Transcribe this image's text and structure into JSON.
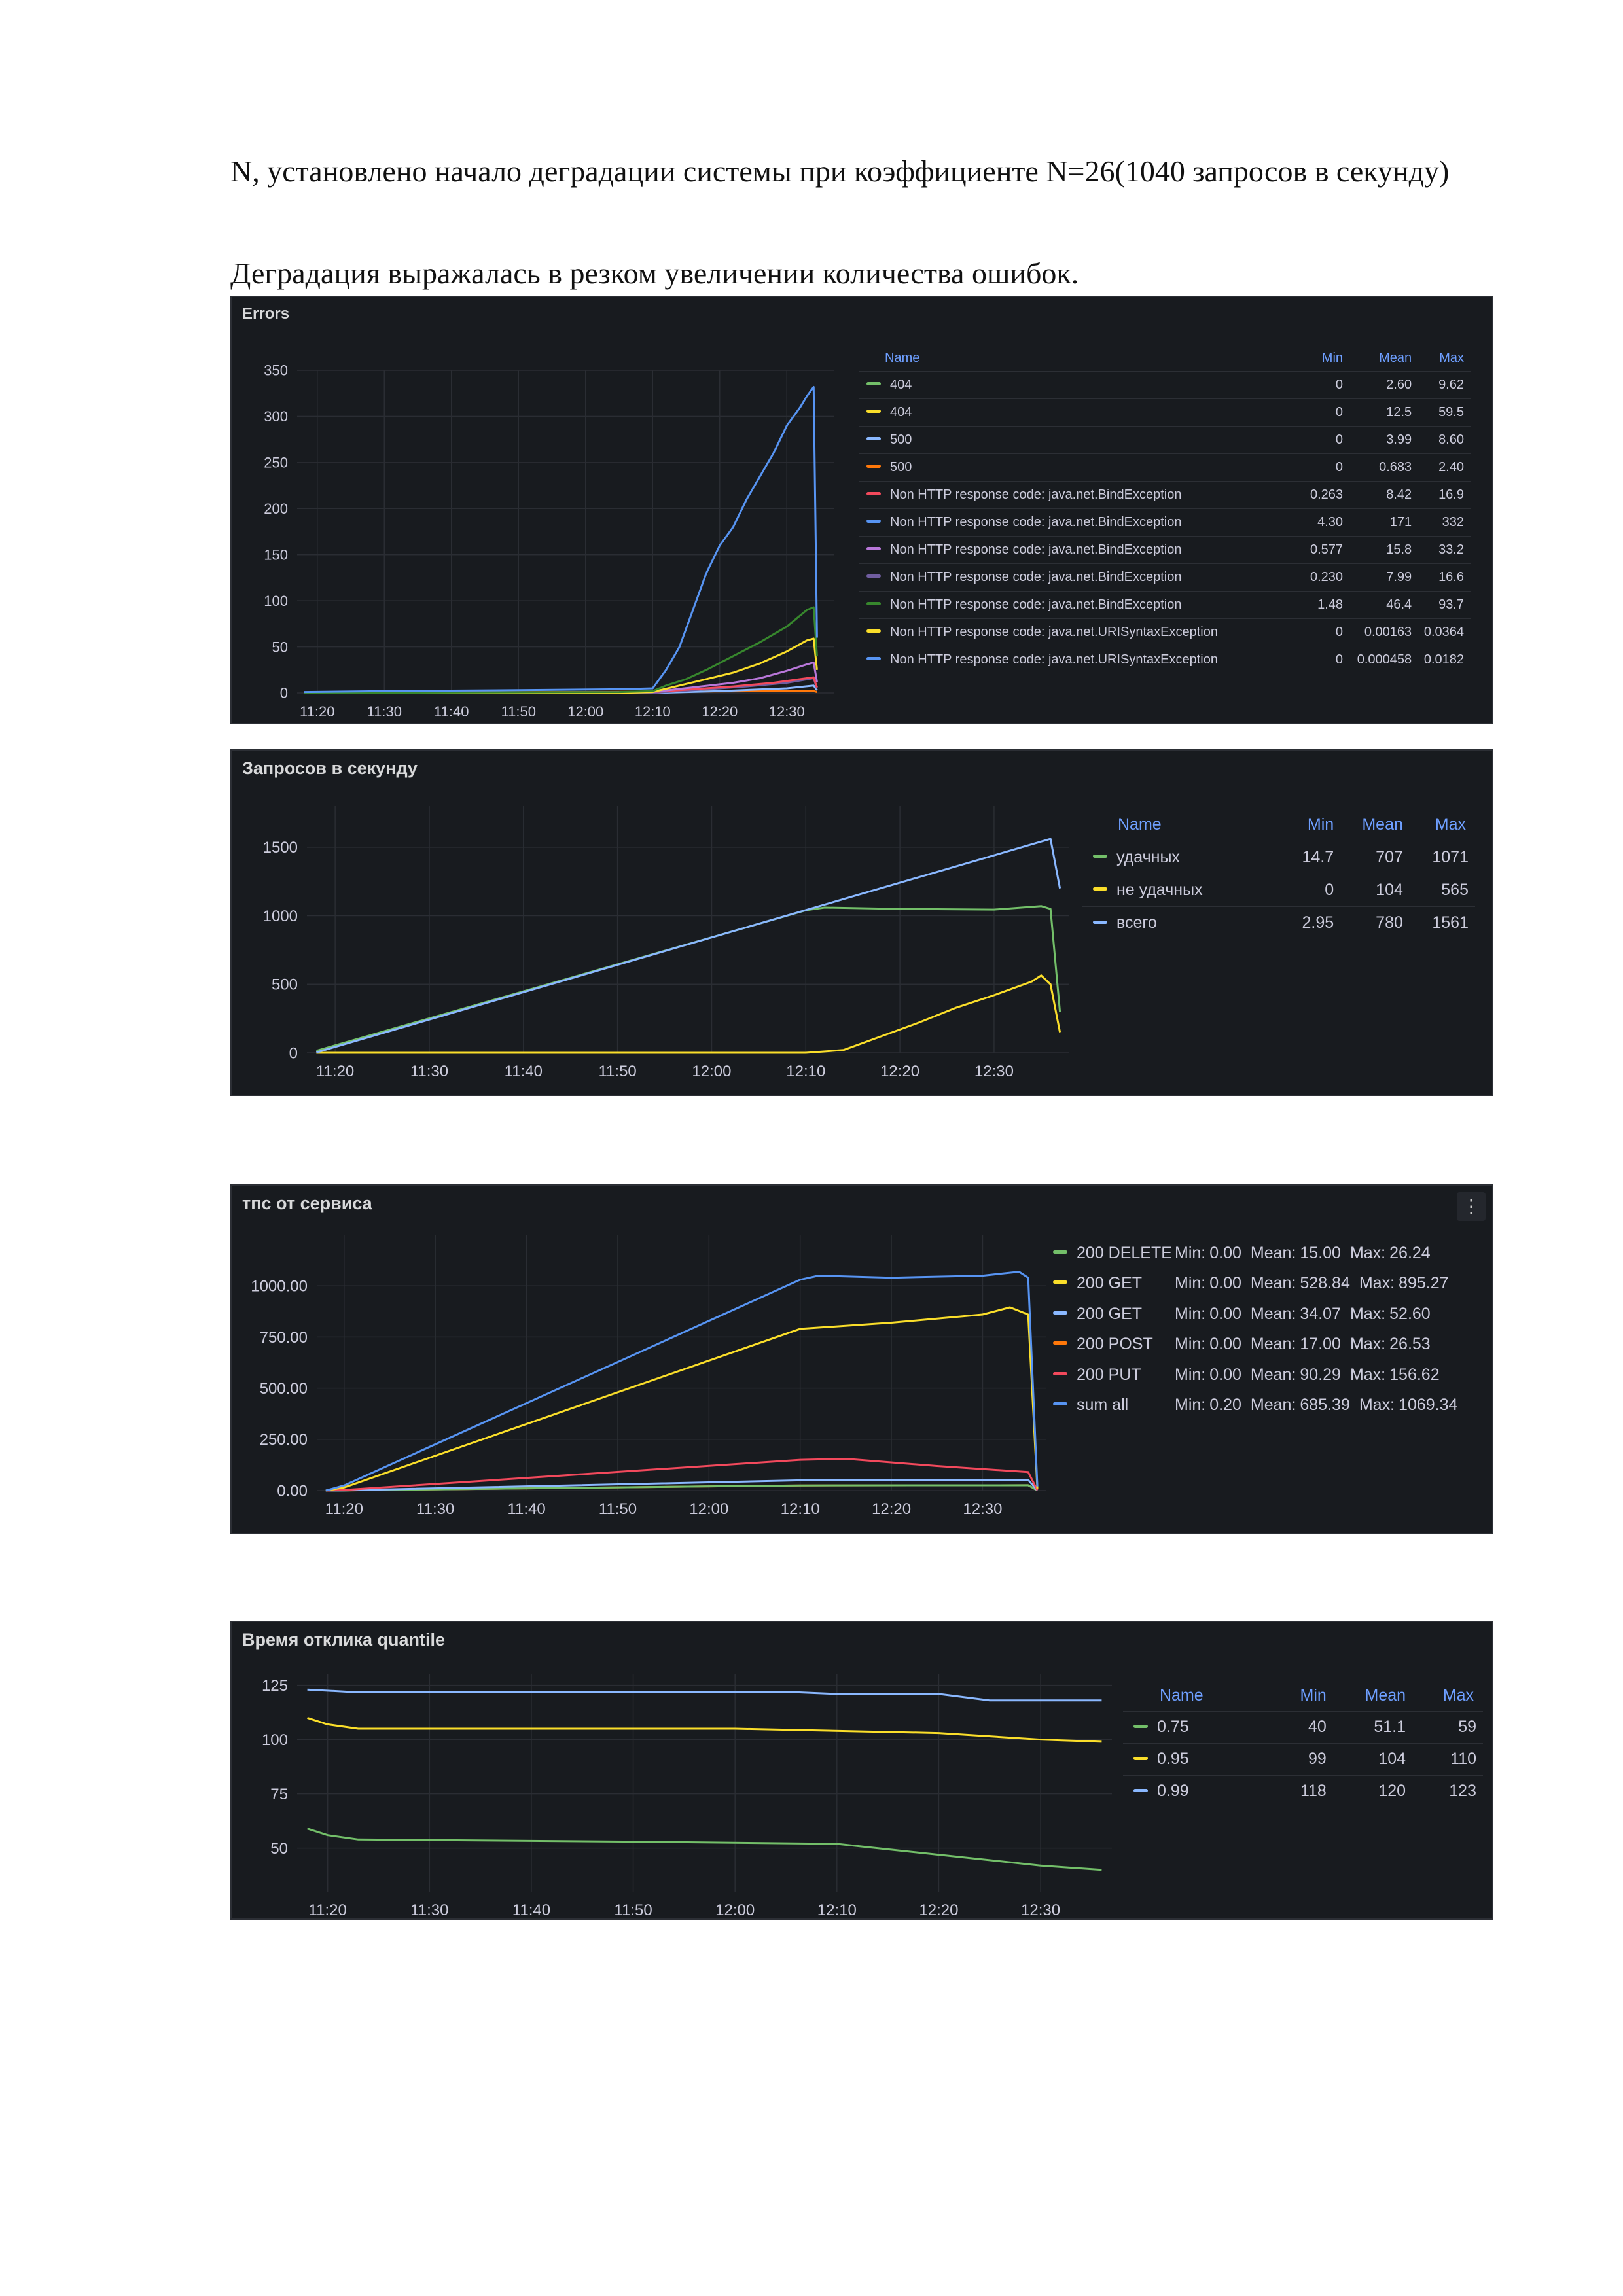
{
  "paragraphs": [
    "N, установлено начало деградации системы при коэффициенте N=26(1040 запросов в секунду)",
    "Деградация выражалась в резком увеличении количества ошибок."
  ],
  "chart_data": [
    {
      "type": "line",
      "title": "Errors",
      "x": [
        "11:20",
        "11:30",
        "11:40",
        "11:50",
        "12:00",
        "12:10",
        "12:20",
        "12:30"
      ],
      "yticks": [
        0,
        50,
        100,
        150,
        200,
        250,
        300,
        350
      ],
      "ylim": [
        0,
        350
      ],
      "xlim_minutes": [
        -3,
        77
      ],
      "legend": {
        "headers": {
          "name": "Name",
          "min": "Min",
          "mean": "Mean",
          "max": "Max"
        },
        "rows": [
          {
            "name": "404",
            "color": "#73bf69",
            "min": "0",
            "mean": "2.60",
            "max": "9.62"
          },
          {
            "name": "404",
            "color": "#fade2a",
            "min": "0",
            "mean": "12.5",
            "max": "59.5"
          },
          {
            "name": "500",
            "color": "#8ab8ff",
            "min": "0",
            "mean": "3.99",
            "max": "8.60"
          },
          {
            "name": "500",
            "color": "#ff780a",
            "min": "0",
            "mean": "0.683",
            "max": "2.40"
          },
          {
            "name": "Non HTTP response code: java.net.BindException",
            "color": "#f2495c",
            "min": "0.263",
            "mean": "8.42",
            "max": "16.9"
          },
          {
            "name": "Non HTTP response code: java.net.BindException",
            "color": "#5794f2",
            "min": "4.30",
            "mean": "171",
            "max": "332"
          },
          {
            "name": "Non HTTP response code: java.net.BindException",
            "color": "#b877d9",
            "min": "0.577",
            "mean": "15.8",
            "max": "33.2"
          },
          {
            "name": "Non HTTP response code: java.net.BindException",
            "color": "#705da0",
            "min": "0.230",
            "mean": "7.99",
            "max": "16.6"
          },
          {
            "name": "Non HTTP response code: java.net.BindException",
            "color": "#37872d",
            "min": "1.48",
            "mean": "46.4",
            "max": "93.7"
          },
          {
            "name": "Non HTTP response code: java.net.URISyntaxException",
            "color": "#fade2a",
            "min": "0",
            "mean": "0.00163",
            "max": "0.0364"
          },
          {
            "name": "Non HTTP response code: java.net.URISyntaxException",
            "color": "#5794f2",
            "min": "0",
            "mean": "0.000458",
            "max": "0.0182"
          }
        ]
      },
      "series": [
        {
          "color": "#5794f2",
          "points": [
            [
              -2,
              1
            ],
            [
              10,
              2
            ],
            [
              30,
              3
            ],
            [
              45,
              4
            ],
            [
              50,
              5
            ],
            [
              52,
              25
            ],
            [
              54,
              50
            ],
            [
              56,
              90
            ],
            [
              58,
              130
            ],
            [
              60,
              160
            ],
            [
              62,
              180
            ],
            [
              64,
              210
            ],
            [
              66,
              235
            ],
            [
              68,
              260
            ],
            [
              70,
              290
            ],
            [
              72,
              310
            ],
            [
              73,
              322
            ],
            [
              74,
              332
            ],
            [
              74.5,
              60
            ]
          ]
        },
        {
          "color": "#37872d",
          "points": [
            [
              -2,
              0
            ],
            [
              45,
              1
            ],
            [
              50,
              2
            ],
            [
              52,
              8
            ],
            [
              55,
              15
            ],
            [
              58,
              25
            ],
            [
              62,
              40
            ],
            [
              66,
              55
            ],
            [
              70,
              72
            ],
            [
              73,
              90
            ],
            [
              74,
              93
            ],
            [
              74.5,
              40
            ]
          ]
        },
        {
          "color": "#fade2a",
          "points": [
            [
              -2,
              0
            ],
            [
              45,
              0
            ],
            [
              50,
              1
            ],
            [
              54,
              8
            ],
            [
              58,
              15
            ],
            [
              62,
              22
            ],
            [
              66,
              32
            ],
            [
              70,
              45
            ],
            [
              73,
              57
            ],
            [
              74,
              59
            ],
            [
              74.5,
              25
            ]
          ]
        },
        {
          "color": "#b877d9",
          "points": [
            [
              -2,
              0
            ],
            [
              50,
              1
            ],
            [
              56,
              6
            ],
            [
              62,
              11
            ],
            [
              66,
              16
            ],
            [
              70,
              24
            ],
            [
              73,
              31
            ],
            [
              74,
              33
            ],
            [
              74.5,
              12
            ]
          ]
        },
        {
          "color": "#f2495c",
          "points": [
            [
              -2,
              0
            ],
            [
              50,
              1
            ],
            [
              56,
              4
            ],
            [
              62,
              7
            ],
            [
              68,
              11
            ],
            [
              72,
              15
            ],
            [
              74,
              17
            ],
            [
              74.5,
              6
            ]
          ]
        },
        {
          "color": "#705da0",
          "points": [
            [
              -2,
              0
            ],
            [
              50,
              0
            ],
            [
              58,
              4
            ],
            [
              64,
              7
            ],
            [
              70,
              11
            ],
            [
              74,
              16
            ],
            [
              74.5,
              5
            ]
          ]
        },
        {
          "color": "#8ab8ff",
          "points": [
            [
              -2,
              0
            ],
            [
              50,
              0
            ],
            [
              60,
              2
            ],
            [
              70,
              5
            ],
            [
              74,
              8
            ],
            [
              74.5,
              3
            ]
          ]
        },
        {
          "color": "#ff780a",
          "points": [
            [
              -2,
              0
            ],
            [
              74,
              2
            ],
            [
              74.5,
              1
            ]
          ]
        }
      ]
    },
    {
      "type": "line",
      "title": "Запросов в секунду",
      "x": [
        "11:20",
        "11:30",
        "11:40",
        "11:50",
        "12:00",
        "12:10",
        "12:20",
        "12:30"
      ],
      "yticks": [
        0,
        500,
        1000,
        1500
      ],
      "ylim": [
        0,
        1800
      ],
      "xlim_minutes": [
        -3,
        78
      ],
      "legend": {
        "headers": {
          "name": "Name",
          "min": "Min",
          "mean": "Mean",
          "max": "Max"
        },
        "rows": [
          {
            "name": "удачных",
            "color": "#73bf69",
            "min": "14.7",
            "mean": "707",
            "max": "1071"
          },
          {
            "name": "не удачных",
            "color": "#fade2a",
            "min": "0",
            "mean": "104",
            "max": "565"
          },
          {
            "name": "всего",
            "color": "#8ab8ff",
            "min": "2.95",
            "mean": "780",
            "max": "1561"
          }
        ]
      },
      "series": [
        {
          "color": "#8ab8ff",
          "points": [
            [
              -2,
              3
            ],
            [
              76,
              1561
            ],
            [
              77,
              1200
            ]
          ]
        },
        {
          "color": "#73bf69",
          "points": [
            [
              -2,
              15
            ],
            [
              50,
              1040
            ],
            [
              52,
              1060
            ],
            [
              60,
              1050
            ],
            [
              70,
              1045
            ],
            [
              75,
              1071
            ],
            [
              76,
              1050
            ],
            [
              77,
              300
            ]
          ]
        },
        {
          "color": "#fade2a",
          "points": [
            [
              -2,
              0
            ],
            [
              50,
              0
            ],
            [
              54,
              20
            ],
            [
              58,
              120
            ],
            [
              62,
              220
            ],
            [
              66,
              330
            ],
            [
              70,
              420
            ],
            [
              74,
              520
            ],
            [
              75,
              565
            ],
            [
              76,
              500
            ],
            [
              77,
              150
            ]
          ]
        }
      ]
    },
    {
      "type": "line",
      "title": "тпс от сервиса",
      "x": [
        "11:20",
        "11:30",
        "11:40",
        "11:50",
        "12:00",
        "12:10",
        "12:20",
        "12:30"
      ],
      "yticks": [
        "0.00",
        "250.00",
        "500.00",
        "750.00",
        "1000.00"
      ],
      "ylim": [
        0,
        1250
      ],
      "xlim_minutes": [
        -3,
        77
      ],
      "legend": {
        "labels": {
          "min": "Min:",
          "mean": "Mean:",
          "max": "Max:"
        },
        "rows": [
          {
            "name": "200 DELETE",
            "color": "#73bf69",
            "min": "0.00",
            "mean": "15.00",
            "max": "26.24"
          },
          {
            "name": "200 GET",
            "color": "#fade2a",
            "min": "0.00",
            "mean": "528.84",
            "max": "895.27"
          },
          {
            "name": "200 GET",
            "color": "#8ab8ff",
            "min": "0.00",
            "mean": "34.07",
            "max": "52.60"
          },
          {
            "name": "200 POST",
            "color": "#ff780a",
            "min": "0.00",
            "mean": "17.00",
            "max": "26.53"
          },
          {
            "name": "200 PUT",
            "color": "#f2495c",
            "min": "0.00",
            "mean": "90.29",
            "max": "156.62"
          },
          {
            "name": "sum all",
            "color": "#5794f2",
            "min": "0.20",
            "mean": "685.39",
            "max": "1069.34"
          }
        ]
      },
      "series": [
        {
          "color": "#5794f2",
          "points": [
            [
              -2,
              0
            ],
            [
              0,
              25
            ],
            [
              50,
              1030
            ],
            [
              52,
              1050
            ],
            [
              60,
              1040
            ],
            [
              70,
              1050
            ],
            [
              74,
              1069
            ],
            [
              75,
              1040
            ],
            [
              76,
              20
            ]
          ]
        },
        {
          "color": "#fade2a",
          "points": [
            [
              -2,
              0
            ],
            [
              0,
              15
            ],
            [
              50,
              790
            ],
            [
              60,
              820
            ],
            [
              70,
              860
            ],
            [
              73,
              895
            ],
            [
              75,
              860
            ],
            [
              76,
              10
            ]
          ]
        },
        {
          "color": "#f2495c",
          "points": [
            [
              -2,
              0
            ],
            [
              0,
              3
            ],
            [
              50,
              150
            ],
            [
              55,
              155
            ],
            [
              65,
              120
            ],
            [
              75,
              90
            ],
            [
              76,
              2
            ]
          ]
        },
        {
          "color": "#8ab8ff",
          "points": [
            [
              -2,
              0
            ],
            [
              0,
              1
            ],
            [
              50,
              50
            ],
            [
              75,
              52
            ],
            [
              76,
              1
            ]
          ]
        },
        {
          "color": "#73bf69",
          "points": [
            [
              -2,
              0
            ],
            [
              0,
              1
            ],
            [
              50,
              25
            ],
            [
              75,
              26
            ],
            [
              76,
              1
            ]
          ]
        },
        {
          "color": "#ff780a",
          "points": [
            [
              -2,
              0
            ],
            [
              0,
              1
            ],
            [
              50,
              25
            ],
            [
              75,
              26
            ],
            [
              76,
              1
            ]
          ]
        }
      ]
    },
    {
      "type": "line",
      "title": "Время отклика quantile",
      "x": [
        "11:20",
        "11:30",
        "11:40",
        "11:50",
        "12:00",
        "12:10",
        "12:20",
        "12:30"
      ],
      "yticks": [
        50,
        75,
        100,
        125
      ],
      "ylim": [
        30,
        130
      ],
      "xlim_minutes": [
        -3,
        77
      ],
      "legend": {
        "headers": {
          "name": "Name",
          "min": "Min",
          "mean": "Mean",
          "max": "Max"
        },
        "rows": [
          {
            "name": "0.75",
            "color": "#73bf69",
            "min": "40",
            "mean": "51.1",
            "max": "59"
          },
          {
            "name": "0.95",
            "color": "#fade2a",
            "min": "99",
            "mean": "104",
            "max": "110"
          },
          {
            "name": "0.99",
            "color": "#8ab8ff",
            "min": "118",
            "mean": "120",
            "max": "123"
          }
        ]
      },
      "series": [
        {
          "color": "#8ab8ff",
          "points": [
            [
              -2,
              123
            ],
            [
              2,
              122
            ],
            [
              45,
              122
            ],
            [
              50,
              121
            ],
            [
              60,
              121
            ],
            [
              65,
              118
            ],
            [
              76,
              118
            ]
          ]
        },
        {
          "color": "#fade2a",
          "points": [
            [
              -2,
              110
            ],
            [
              0,
              107
            ],
            [
              3,
              105
            ],
            [
              40,
              105
            ],
            [
              60,
              103
            ],
            [
              70,
              100
            ],
            [
              76,
              99
            ]
          ]
        },
        {
          "color": "#73bf69",
          "points": [
            [
              -2,
              59
            ],
            [
              0,
              56
            ],
            [
              3,
              54
            ],
            [
              30,
              53
            ],
            [
              50,
              52
            ],
            [
              60,
              47
            ],
            [
              70,
              42
            ],
            [
              76,
              40
            ]
          ]
        }
      ]
    }
  ]
}
